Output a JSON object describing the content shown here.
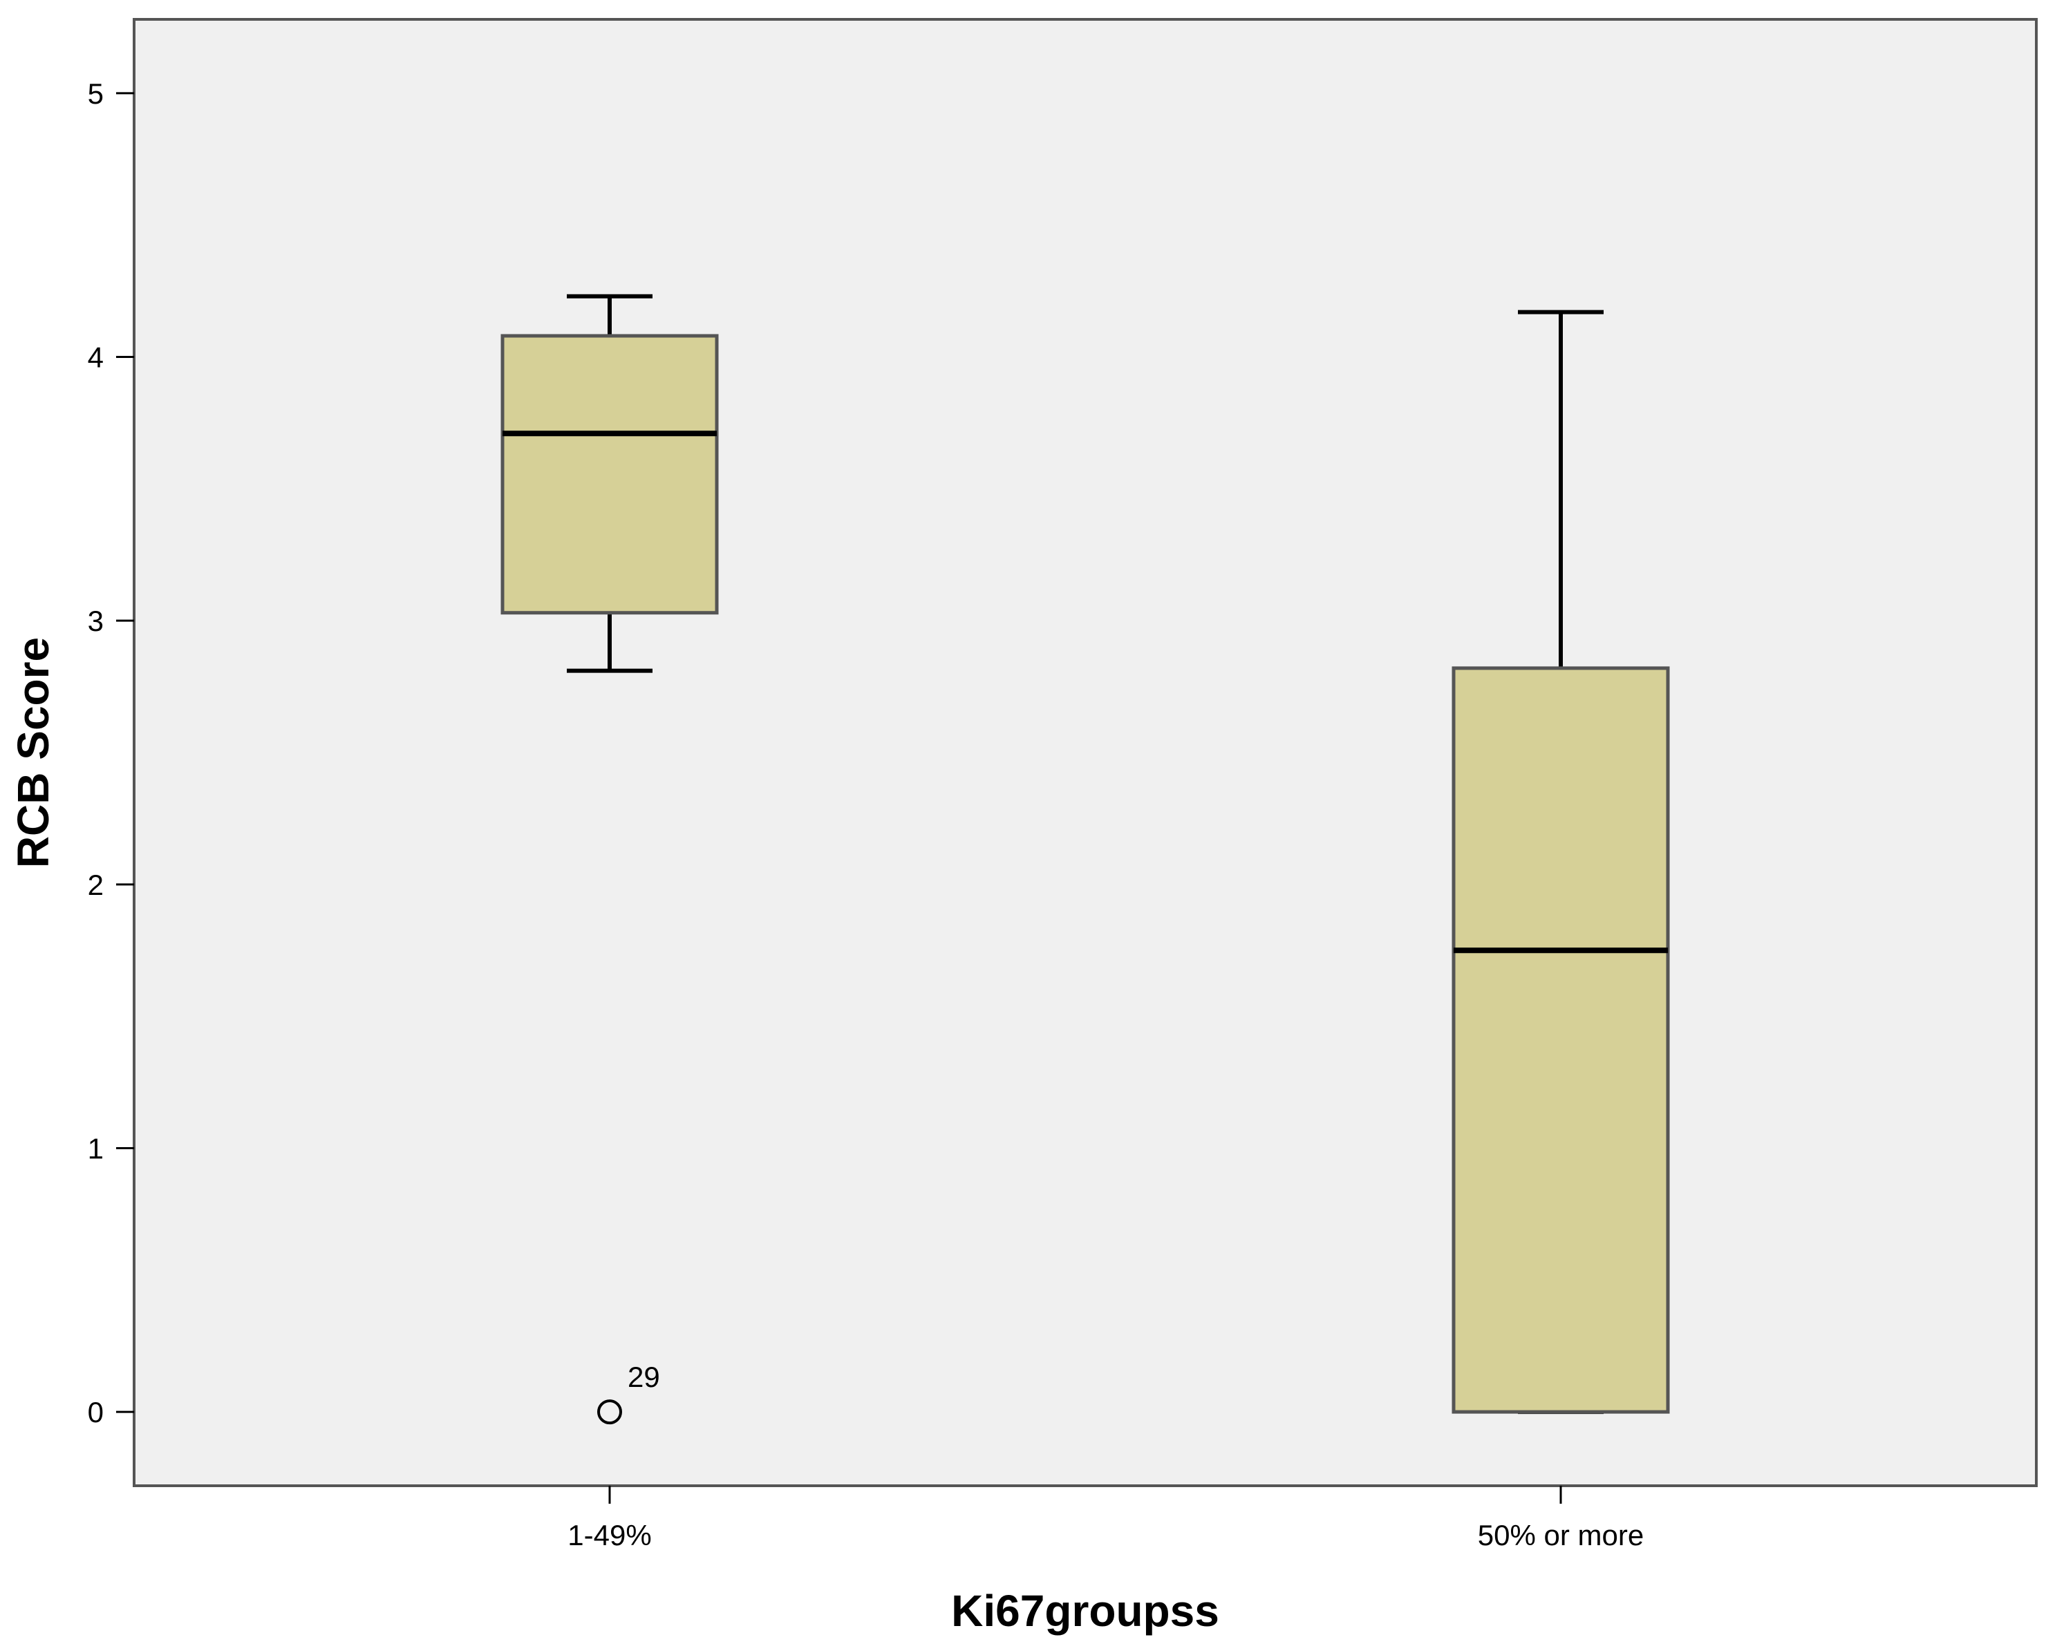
{
  "chart_data": {
    "type": "box",
    "xlabel": "Ki67groupss",
    "ylabel": "RCB Score",
    "ylim": [
      -0.28,
      5.28
    ],
    "yticks": [
      0,
      1,
      2,
      3,
      4,
      5
    ],
    "grid": false,
    "colors": {
      "plot_bg": "#f0f0f0",
      "box_fill": "#d6d097",
      "box_stroke": "#555555",
      "line": "#000000"
    },
    "categories": [
      "1-49%",
      "50% or more"
    ],
    "boxes": [
      {
        "category": "1-49%",
        "whisker_low": 2.81,
        "q1": 3.03,
        "median": 3.71,
        "q3": 4.08,
        "whisker_high": 4.23,
        "outliers": [
          {
            "value": 0,
            "label": "29"
          }
        ]
      },
      {
        "category": "50% or more",
        "whisker_low": 0,
        "q1": 0,
        "median": 1.75,
        "q3": 2.82,
        "whisker_high": 4.17,
        "outliers": []
      }
    ]
  }
}
